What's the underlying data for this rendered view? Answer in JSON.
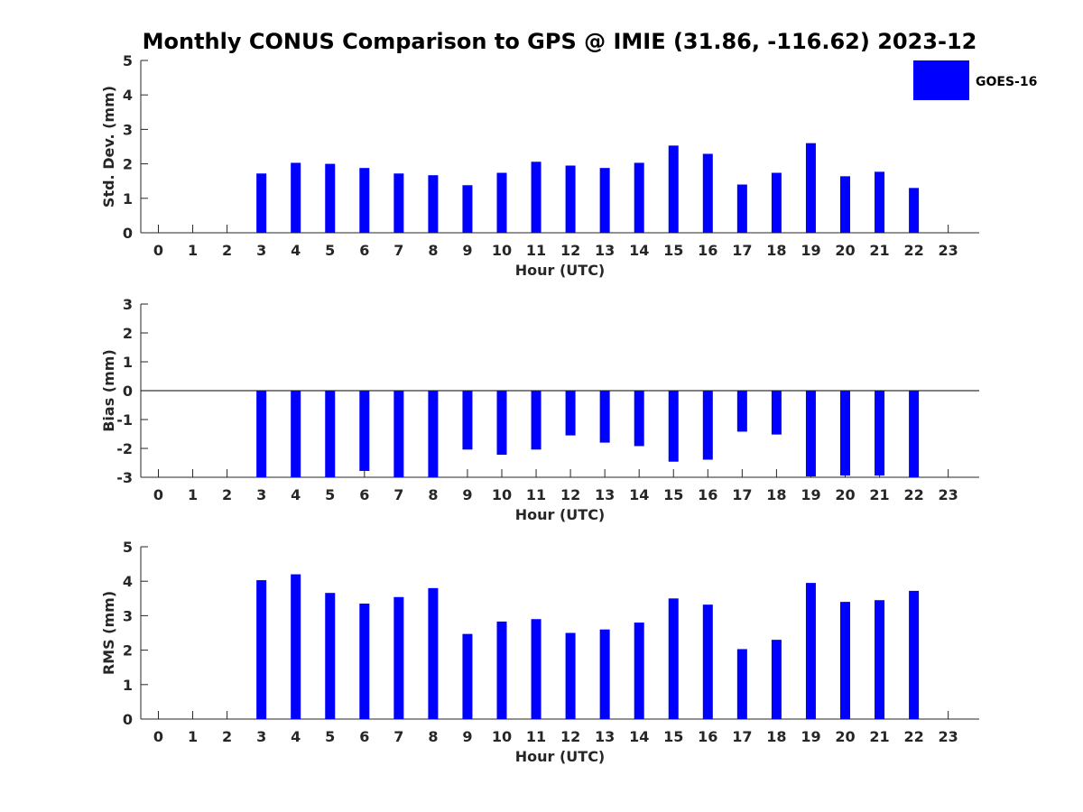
{
  "chart_data": {
    "title": "Monthly CONUS Comparison to GPS @ IMIE (31.86, -116.62) 2023-12",
    "legend": {
      "label": "GOES-16",
      "placement": "top-right",
      "color": "#0000ff"
    },
    "bar_color": "#0000ff",
    "categories": [
      "0",
      "1",
      "2",
      "3",
      "4",
      "5",
      "6",
      "7",
      "8",
      "9",
      "10",
      "11",
      "12",
      "13",
      "14",
      "15",
      "16",
      "17",
      "18",
      "19",
      "20",
      "21",
      "22",
      "23"
    ],
    "panels": [
      {
        "type": "bar",
        "xlabel": "Hour (UTC)",
        "ylabel": "Std. Dev. (mm)",
        "ylim": [
          0,
          5
        ],
        "yticks": [
          "0",
          "1",
          "2",
          "3",
          "4",
          "5"
        ],
        "series": [
          {
            "name": "GOES-16",
            "values": [
              null,
              null,
              null,
              1.72,
              2.03,
              2.0,
              1.88,
              1.72,
              1.67,
              1.38,
              1.74,
              2.06,
              1.95,
              1.88,
              2.03,
              2.53,
              2.29,
              1.4,
              1.74,
              2.6,
              1.64,
              1.77,
              1.3,
              null
            ]
          }
        ]
      },
      {
        "type": "bar",
        "xlabel": "Hour (UTC)",
        "ylabel": "Bias (mm)",
        "ylim": [
          -3,
          3
        ],
        "yticks": [
          "-3",
          "-2",
          "-1",
          "0",
          "1",
          "2",
          "3"
        ],
        "zero_line": true,
        "series": [
          {
            "name": "GOES-16",
            "values": [
              null,
              null,
              null,
              -3.0,
              -3.0,
              -3.0,
              -2.78,
              -3.0,
              -3.0,
              -2.04,
              -2.22,
              -2.04,
              -1.55,
              -1.8,
              -1.92,
              -2.46,
              -2.39,
              -1.42,
              -1.52,
              -2.97,
              -2.94,
              -2.94,
              -3.0,
              null
            ]
          }
        ]
      },
      {
        "type": "bar",
        "xlabel": "Hour (UTC)",
        "ylabel": "RMS (mm)",
        "ylim": [
          0,
          5
        ],
        "yticks": [
          "0",
          "1",
          "2",
          "3",
          "4",
          "5"
        ],
        "series": [
          {
            "name": "GOES-16",
            "values": [
              null,
              null,
              null,
              4.03,
              4.2,
              3.66,
              3.35,
              3.54,
              3.8,
              2.47,
              2.83,
              2.9,
              2.5,
              2.6,
              2.8,
              3.5,
              3.32,
              2.03,
              2.3,
              3.95,
              3.4,
              3.45,
              3.72,
              null
            ]
          }
        ]
      }
    ]
  }
}
